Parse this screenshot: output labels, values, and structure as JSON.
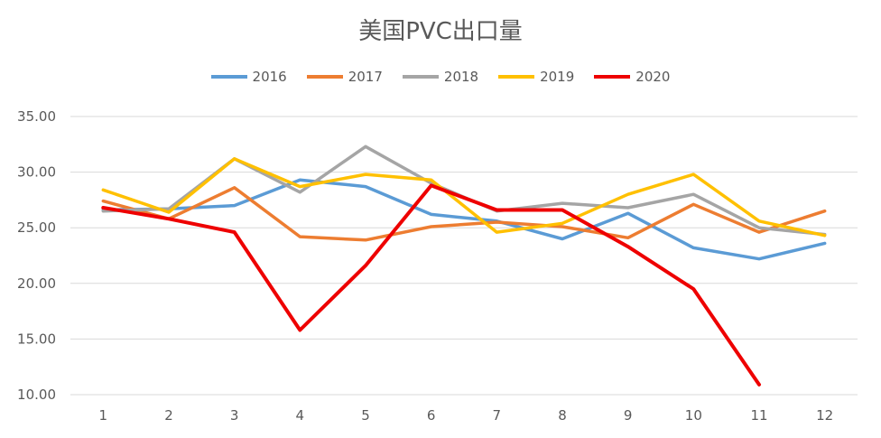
{
  "chart_data": {
    "type": "line",
    "title": "美国PVC出口量",
    "xlabel": "",
    "ylabel": "",
    "categories": [
      "1",
      "2",
      "3",
      "4",
      "5",
      "6",
      "7",
      "8",
      "9",
      "10",
      "11",
      "12"
    ],
    "ylim": [
      10,
      35
    ],
    "yticks": [
      "10.00",
      "15.00",
      "20.00",
      "25.00",
      "30.00",
      "35.00"
    ],
    "grid": true,
    "legend_position": "top",
    "series": [
      {
        "name": "2016",
        "color": "#5b9bd5",
        "values": [
          26.6,
          26.7,
          27.0,
          29.3,
          28.7,
          26.2,
          25.6,
          24.0,
          26.3,
          23.2,
          22.2,
          23.6
        ]
      },
      {
        "name": "2017",
        "color": "#ed7d31",
        "values": [
          27.4,
          25.8,
          28.6,
          24.2,
          23.9,
          25.1,
          25.5,
          25.1,
          24.1,
          27.1,
          24.6,
          26.5
        ]
      },
      {
        "name": "2018",
        "color": "#a5a5a5",
        "values": [
          26.5,
          26.7,
          31.2,
          28.2,
          32.3,
          29.0,
          26.5,
          27.2,
          26.8,
          28.0,
          25.0,
          24.4
        ]
      },
      {
        "name": "2019",
        "color": "#ffc000",
        "values": [
          28.4,
          26.4,
          31.2,
          28.7,
          29.8,
          29.3,
          24.6,
          25.4,
          28.0,
          29.8,
          25.6,
          24.3
        ]
      },
      {
        "name": "2020",
        "color": "#ee0000",
        "values": [
          26.8,
          25.8,
          24.6,
          15.8,
          21.6,
          28.8,
          26.6,
          26.6,
          23.3,
          19.5,
          10.9,
          null
        ]
      }
    ]
  }
}
